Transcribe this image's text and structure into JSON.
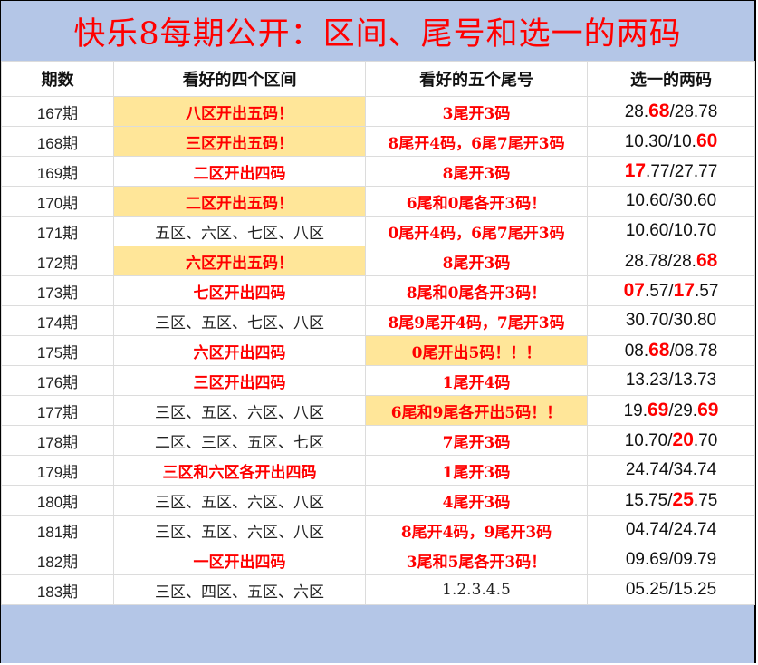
{
  "title": "快乐8每期公开：区间、尾号和选一的两码",
  "headers": [
    "期数",
    "看好的四个区间",
    "看好的五个尾号",
    "选一的两码"
  ],
  "colors": {
    "header_bg": "#b4c6e7",
    "highlight_bg": "#ffe699",
    "accent": "#ff0000"
  },
  "rows": [
    {
      "period": "167期",
      "zone": "八区开出五码！",
      "zone_red": true,
      "zone_hl": true,
      "tail": "3尾开3码",
      "tail_red": true,
      "tail_hl": false,
      "pick": [
        {
          "t": "28."
        },
        {
          "t": "68",
          "hot": true
        },
        {
          "t": "/28.78"
        }
      ]
    },
    {
      "period": "168期",
      "zone": "三区开出五码！",
      "zone_red": true,
      "zone_hl": true,
      "tail": "8尾开4码，6尾7尾开3码",
      "tail_red": true,
      "tail_hl": false,
      "pick": [
        {
          "t": "10.30/10."
        },
        {
          "t": "60",
          "hot": true
        }
      ]
    },
    {
      "period": "169期",
      "zone": "二区开出四码",
      "zone_red": true,
      "zone_hl": false,
      "tail": "8尾开3码",
      "tail_red": true,
      "tail_hl": false,
      "pick": [
        {
          "t": "17",
          "hot": true
        },
        {
          "t": ".77/27.77"
        }
      ]
    },
    {
      "period": "170期",
      "zone": "二区开出五码！",
      "zone_red": true,
      "zone_hl": true,
      "tail": "6尾和0尾各开3码！",
      "tail_red": true,
      "tail_hl": false,
      "pick": [
        {
          "t": "10.60/30.60"
        }
      ]
    },
    {
      "period": "171期",
      "zone": "五区、六区、七区、八区",
      "zone_red": false,
      "zone_hl": false,
      "tail": "0尾开4码，6尾7尾开3码",
      "tail_red": true,
      "tail_hl": false,
      "pick": [
        {
          "t": "10.60/10.70"
        }
      ]
    },
    {
      "period": "172期",
      "zone": "六区开出五码！",
      "zone_red": true,
      "zone_hl": true,
      "tail": "8尾开3码",
      "tail_red": true,
      "tail_hl": false,
      "pick": [
        {
          "t": "28.78/28."
        },
        {
          "t": "68",
          "hot": true
        }
      ]
    },
    {
      "period": "173期",
      "zone": "七区开出四码",
      "zone_red": true,
      "zone_hl": false,
      "tail": "8尾和0尾各开3码！",
      "tail_red": true,
      "tail_hl": false,
      "pick": [
        {
          "t": "07",
          "hot": true
        },
        {
          "t": ".57/"
        },
        {
          "t": "17",
          "hot": true
        },
        {
          "t": ".57"
        }
      ]
    },
    {
      "period": "174期",
      "zone": "三区、五区、七区、八区",
      "zone_red": false,
      "zone_hl": false,
      "tail": "8尾9尾开4码，7尾开3码",
      "tail_red": true,
      "tail_hl": false,
      "pick": [
        {
          "t": "30.70/30.80"
        }
      ]
    },
    {
      "period": "175期",
      "zone": "六区开出四码",
      "zone_red": true,
      "zone_hl": false,
      "tail": "0尾开出5码！！！",
      "tail_red": true,
      "tail_hl": true,
      "pick": [
        {
          "t": "08."
        },
        {
          "t": "68",
          "hot": true
        },
        {
          "t": "/08.78"
        }
      ]
    },
    {
      "period": "176期",
      "zone": "三区开出四码",
      "zone_red": true,
      "zone_hl": false,
      "tail": "1尾开4码",
      "tail_red": true,
      "tail_hl": false,
      "pick": [
        {
          "t": "13.23/13.73"
        }
      ]
    },
    {
      "period": "177期",
      "zone": "三区、五区、六区、八区",
      "zone_red": false,
      "zone_hl": false,
      "tail": "6尾和9尾各开出5码！！",
      "tail_red": true,
      "tail_hl": true,
      "pick": [
        {
          "t": "19."
        },
        {
          "t": "69",
          "hot": true
        },
        {
          "t": "/29."
        },
        {
          "t": "69",
          "hot": true
        }
      ]
    },
    {
      "period": "178期",
      "zone": "二区、三区、五区、七区",
      "zone_red": false,
      "zone_hl": false,
      "tail": "7尾开3码",
      "tail_red": true,
      "tail_hl": false,
      "pick": [
        {
          "t": "10.70/"
        },
        {
          "t": "20",
          "hot": true
        },
        {
          "t": ".70"
        }
      ]
    },
    {
      "period": "179期",
      "zone": "三区和六区各开出四码",
      "zone_red": true,
      "zone_hl": false,
      "tail": "1尾开3码",
      "tail_red": true,
      "tail_hl": false,
      "pick": [
        {
          "t": "24.74/34.74"
        }
      ]
    },
    {
      "period": "180期",
      "zone": "三区、五区、六区、八区",
      "zone_red": false,
      "zone_hl": false,
      "tail": "4尾开3码",
      "tail_red": true,
      "tail_hl": false,
      "pick": [
        {
          "t": "15.75/"
        },
        {
          "t": "25",
          "hot": true
        },
        {
          "t": ".75"
        }
      ]
    },
    {
      "period": "181期",
      "zone": "三区、五区、六区、八区",
      "zone_red": false,
      "zone_hl": false,
      "tail": "8尾开4码，9尾开3码",
      "tail_red": true,
      "tail_hl": false,
      "pick": [
        {
          "t": "04.74/24.74"
        }
      ]
    },
    {
      "period": "182期",
      "zone": "一区开出四码",
      "zone_red": true,
      "zone_hl": false,
      "tail": "3尾和5尾各开3码！",
      "tail_red": true,
      "tail_hl": false,
      "pick": [
        {
          "t": "09.69/09.79"
        }
      ]
    },
    {
      "period": "183期",
      "zone": "三区、四区、五区、六区",
      "zone_red": false,
      "zone_hl": false,
      "tail": "1.2.3.4.5",
      "tail_red": false,
      "tail_hl": false,
      "pick": [
        {
          "t": "05.25/15.25"
        }
      ]
    }
  ]
}
